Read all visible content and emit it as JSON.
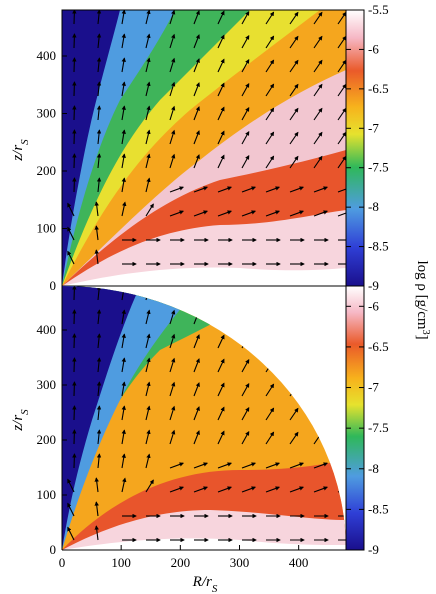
{
  "chart_data": [
    {
      "type": "heatmap",
      "panel": "top",
      "xlabel": "",
      "ylabel": "z/r_S",
      "ylabel_main": "z/r",
      "ylabel_sub": "S",
      "xlim": [
        0,
        480
      ],
      "ylim": [
        0,
        480
      ],
      "x_ticks": [],
      "y_ticks": [
        0,
        100,
        200,
        300,
        400
      ],
      "vector_field": "velocity arrows",
      "domain_shape": "rectangle"
    },
    {
      "type": "heatmap",
      "panel": "bottom",
      "xlabel": "R/r_S",
      "xlabel_main": "R/r",
      "xlabel_sub": "S",
      "ylabel": "z/r_S",
      "ylabel_main": "z/r",
      "ylabel_sub": "S",
      "xlim": [
        0,
        480
      ],
      "ylim": [
        0,
        480
      ],
      "x_ticks": [
        0,
        100,
        200,
        300,
        400
      ],
      "y_ticks": [
        0,
        100,
        200,
        300,
        400
      ],
      "vector_field": "velocity arrows",
      "domain_shape": "quarter-circle, radius 480"
    }
  ],
  "colorbar": {
    "label": "log ρ [g/cm³]",
    "label_main": "log ρ [g/cm",
    "label_sup": "3",
    "label_end": "]",
    "top": {
      "range": [
        -9,
        -5.5
      ],
      "ticks": [
        "-5.5",
        "-6",
        "-6.5",
        "-7",
        "-7.5",
        "-8",
        "-8.5",
        "-9"
      ]
    },
    "bottom": {
      "range": [
        -9,
        -5.75
      ],
      "ticks": [
        "-6",
        "-6.5",
        "-7",
        "-7.5",
        "-8",
        "-8.5",
        "-9"
      ]
    },
    "colormap": [
      "#1a0f8c",
      "#3a6be8",
      "#2fb85a",
      "#e8e030",
      "#f5a018",
      "#e44c2c",
      "#fbd8e2",
      "#ffffff"
    ]
  }
}
